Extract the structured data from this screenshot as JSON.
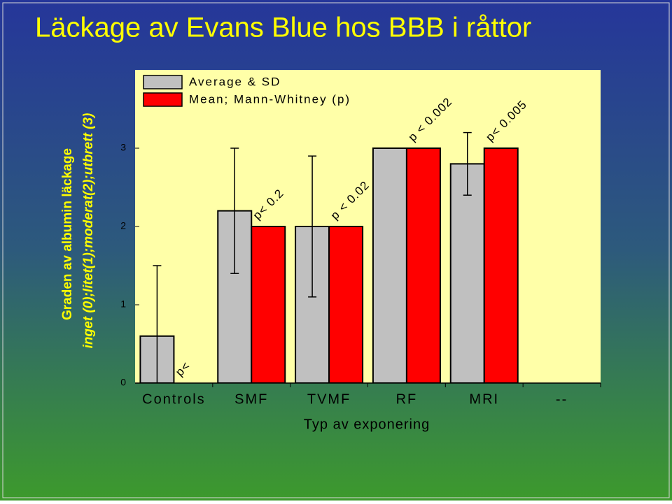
{
  "chart_data": {
    "type": "bar",
    "title": "Läckage av Evans Blue hos BBB i råttor",
    "y_label": [
      "Graden av albumin läckage",
      "inget (0);litet(1);moderat(2);utbrett (3)"
    ],
    "x_label": "Typ av exponering",
    "categories": [
      "Controls",
      "SMF",
      "TVMF",
      "RF",
      "MRI",
      "--"
    ],
    "series": [
      {
        "name": "Average & SD",
        "color": "#c0c0c0",
        "values": [
          0.6,
          2.2,
          2.0,
          3.0,
          2.8,
          null
        ],
        "errors": [
          0.9,
          0.8,
          0.9,
          0,
          0.4,
          null
        ]
      },
      {
        "name": "Mean; Mann-Whitney (p)",
        "color": "#ff0000",
        "values": [
          null,
          2,
          2,
          3,
          3,
          null
        ]
      }
    ],
    "annotations": [
      "p<",
      "p< 0.2",
      "p < 0.02",
      "p < 0.002",
      "p< 0.005"
    ],
    "ylim": [
      0,
      4
    ],
    "yticks": [
      0,
      1,
      2,
      3
    ]
  }
}
